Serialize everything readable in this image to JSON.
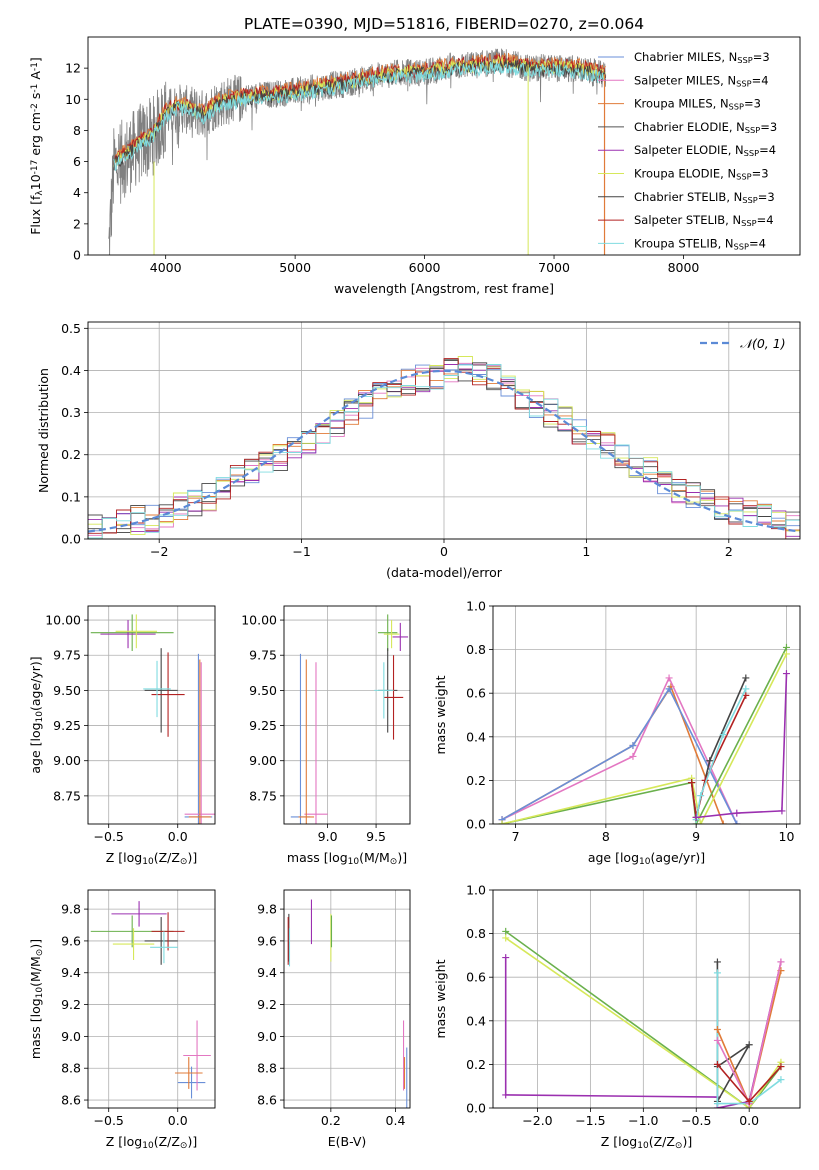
{
  "figure": {
    "title": "PLATE=0390, MJD=51816, FIBERID=0270, z=0.064"
  },
  "colors": {
    "chabrier_miles": "#6a8fd8",
    "salpeter_miles": "#e377c2",
    "kroupa_miles": "#e07b39",
    "chabrier_elodie": "#555555",
    "salpeter_elodie": "#9b30b0",
    "kroupa_elodie": "#d6e85a",
    "chabrier_stelib": "#444444",
    "salpeter_stelib": "#b22222",
    "kroupa_stelib": "#80dce0",
    "data": "#808080",
    "normal": "#5b8ad6",
    "green_line": "#6ab04c"
  },
  "chart_data": [
    {
      "id": "spectrum",
      "type": "line",
      "title": "PLATE=0390, MJD=51816, FIBERID=0270, z=0.064",
      "xlabel": "wavelength [Angstrom, rest frame]",
      "ylabel": "Flux [f$_\\lambda$10$^{-17}$ erg cm$^{-2}$ s$^{-1}$ A$^{-1}$]",
      "xlim": [
        3400,
        8900
      ],
      "ylim": [
        0,
        14
      ],
      "xticks": [
        4000,
        5000,
        6000,
        7000,
        8000
      ],
      "yticks": [
        0,
        2,
        4,
        6,
        8,
        10,
        12
      ],
      "grid": false,
      "legend_position": "right",
      "legend": [
        {
          "label": "Chabrier MILES, N",
          "sub": "SSP",
          "suffix": "=3",
          "color_key": "chabrier_miles"
        },
        {
          "label": "Salpeter MILES, N",
          "sub": "SSP",
          "suffix": "=4",
          "color_key": "salpeter_miles"
        },
        {
          "label": "Kroupa MILES, N",
          "sub": "SSP",
          "suffix": "=3",
          "color_key": "kroupa_miles"
        },
        {
          "label": "Chabrier ELODIE, N",
          "sub": "SSP",
          "suffix": "=3",
          "color_key": "chabrier_elodie"
        },
        {
          "label": "Salpeter ELODIE, N",
          "sub": "SSP",
          "suffix": "=4",
          "color_key": "salpeter_elodie"
        },
        {
          "label": "Kroupa ELODIE, N",
          "sub": "SSP",
          "suffix": "=3",
          "color_key": "kroupa_elodie"
        },
        {
          "label": "Chabrier STELIB, N",
          "sub": "SSP",
          "suffix": "=3",
          "color_key": "chabrier_stelib"
        },
        {
          "label": "Salpeter STELIB, N",
          "sub": "SSP",
          "suffix": "=4",
          "color_key": "salpeter_stelib"
        },
        {
          "label": "Kroupa STELIB, N",
          "sub": "SSP",
          "suffix": "=4",
          "color_key": "kroupa_stelib"
        }
      ],
      "data_envelope": {
        "x": [
          3560,
          3600,
          3700,
          3800,
          3900,
          4000,
          4100,
          4200,
          4300,
          4400,
          4500,
          4600,
          4800,
          5000,
          5200,
          5400,
          5600,
          5800,
          6000,
          6200,
          6400,
          6600,
          6800,
          7000,
          7200,
          7400
        ],
        "y": [
          0.5,
          6.0,
          6.6,
          7.4,
          7.9,
          9.2,
          9.6,
          9.4,
          9.2,
          9.9,
          10.1,
          10.2,
          10.4,
          10.6,
          10.9,
          11.1,
          11.5,
          11.8,
          11.8,
          12.2,
          12.3,
          12.5,
          12.1,
          12.1,
          12.0,
          11.6
        ]
      },
      "model_continuum": {
        "x": [
          3600,
          3700,
          3800,
          3900,
          4000,
          4100,
          4200,
          4300,
          4400,
          4600,
          4800,
          5000,
          5200,
          5400,
          5600,
          5800,
          6000,
          6200,
          6400,
          6600,
          6800,
          7000,
          7200,
          7400
        ],
        "y": [
          6.2,
          6.8,
          7.5,
          8.0,
          9.4,
          9.9,
          9.6,
          9.3,
          10.0,
          10.4,
          10.5,
          10.7,
          11.0,
          11.3,
          11.7,
          11.9,
          12.0,
          12.3,
          12.4,
          12.6,
          12.3,
          12.3,
          12.2,
          11.8
        ]
      }
    },
    {
      "id": "residuals",
      "type": "histogram",
      "xlabel": "(data-model)/error",
      "ylabel": "Normed distribution",
      "xlim": [
        -2.5,
        2.5
      ],
      "ylim": [
        0,
        0.515
      ],
      "xticks": [
        -2,
        -1,
        0,
        1,
        2
      ],
      "yticks": [
        0.0,
        0.1,
        0.2,
        0.3,
        0.4,
        0.5
      ],
      "grid": true,
      "legend": [
        {
          "label": "𝒩(0, 1)",
          "color_key": "normal",
          "style": "dashed"
        }
      ],
      "legend_position": "top-right",
      "bin_width": 0.1,
      "bins_start": -2.5,
      "series_base": [
        0.03,
        0.035,
        0.04,
        0.045,
        0.05,
        0.06,
        0.08,
        0.09,
        0.1,
        0.12,
        0.14,
        0.16,
        0.18,
        0.19,
        0.21,
        0.23,
        0.25,
        0.27,
        0.3,
        0.32,
        0.35,
        0.36,
        0.37,
        0.38,
        0.39,
        0.4,
        0.41,
        0.4,
        0.38,
        0.36,
        0.34,
        0.32,
        0.3,
        0.28,
        0.26,
        0.24,
        0.22,
        0.2,
        0.18,
        0.16,
        0.14,
        0.12,
        0.1,
        0.09,
        0.08,
        0.07,
        0.06,
        0.05,
        0.04,
        0.03
      ]
    },
    {
      "id": "age_vs_Z",
      "type": "errorbar",
      "xlabel": "Z [log$_{10}$(Z/Z$_\\odot$)]",
      "ylabel": "age  [log$_{10}$(age/yr)]",
      "xlim": [
        -0.65,
        0.27
      ],
      "ylim": [
        8.55,
        10.1
      ],
      "xticks": [
        -0.5,
        0.0
      ],
      "yticks": [
        8.75,
        9.0,
        9.25,
        9.5,
        9.75,
        10.0
      ],
      "grid": true,
      "points": [
        {
          "x": -0.33,
          "y": 9.91,
          "xerr": 0.3,
          "yerr": 0.13,
          "color_key": "green_line"
        },
        {
          "x": -0.36,
          "y": 9.9,
          "xerr": 0.2,
          "yerr": 0.1,
          "color_key": "salpeter_elodie"
        },
        {
          "x": -0.3,
          "y": 9.92,
          "xerr": 0.15,
          "yerr": 0.12,
          "color_key": "kroupa_elodie"
        },
        {
          "x": -0.12,
          "y": 9.5,
          "xerr": 0.12,
          "yerr": 0.3,
          "color_key": "chabrier_stelib"
        },
        {
          "x": -0.07,
          "y": 9.47,
          "xerr": 0.12,
          "yerr": 0.3,
          "color_key": "salpeter_stelib"
        },
        {
          "x": -0.15,
          "y": 9.51,
          "xerr": 0.1,
          "yerr": 0.2,
          "color_key": "kroupa_stelib"
        },
        {
          "x": 0.15,
          "y": 8.6,
          "xerr": 0.1,
          "yerr": 1.16,
          "color_key": "chabrier_miles"
        },
        {
          "x": 0.17,
          "y": 8.62,
          "xerr": 0.12,
          "yerr": 1.08,
          "color_key": "salpeter_miles"
        },
        {
          "x": 0.16,
          "y": 8.6,
          "xerr": 0.08,
          "yerr": 1.12,
          "color_key": "kroupa_miles"
        }
      ]
    },
    {
      "id": "age_vs_mass",
      "type": "errorbar",
      "xlabel": "mass [log$_{10}$(M/M$_\\odot$)]",
      "ylabel": "",
      "xlim": [
        8.55,
        9.85
      ],
      "ylim": [
        8.55,
        10.1
      ],
      "xticks": [
        9.0,
        9.5
      ],
      "yticks": [
        8.75,
        9.0,
        9.25,
        9.5,
        9.75,
        10.0
      ],
      "grid": true,
      "points": [
        {
          "x": 9.62,
          "y": 9.91,
          "xerr": 0.1,
          "yerr": 0.13,
          "color_key": "green_line"
        },
        {
          "x": 9.75,
          "y": 9.88,
          "xerr": 0.08,
          "yerr": 0.1,
          "color_key": "salpeter_elodie"
        },
        {
          "x": 9.66,
          "y": 9.9,
          "xerr": 0.08,
          "yerr": 0.1,
          "color_key": "kroupa_elodie"
        },
        {
          "x": 9.62,
          "y": 9.5,
          "xerr": 0.1,
          "yerr": 0.3,
          "color_key": "chabrier_stelib"
        },
        {
          "x": 9.68,
          "y": 9.45,
          "xerr": 0.1,
          "yerr": 0.3,
          "color_key": "salpeter_stelib"
        },
        {
          "x": 9.58,
          "y": 9.5,
          "xerr": 0.1,
          "yerr": 0.2,
          "color_key": "kroupa_stelib"
        },
        {
          "x": 8.72,
          "y": 8.6,
          "xerr": 0.1,
          "yerr": 1.16,
          "color_key": "chabrier_miles"
        },
        {
          "x": 8.88,
          "y": 8.62,
          "xerr": 0.12,
          "yerr": 1.08,
          "color_key": "salpeter_miles"
        },
        {
          "x": 8.78,
          "y": 8.6,
          "xerr": 0.08,
          "yerr": 1.12,
          "color_key": "kroupa_miles"
        }
      ]
    },
    {
      "id": "mass_weight_vs_age",
      "type": "line",
      "xlabel": "age  [log$_{10}$(age/yr)]",
      "ylabel": "mass weight",
      "xlim": [
        6.75,
        10.15
      ],
      "ylim": [
        0.0,
        1.0
      ],
      "xticks": [
        7,
        8,
        9,
        10
      ],
      "yticks": [
        0.0,
        0.2,
        0.4,
        0.6,
        0.8,
        1.0
      ],
      "grid": true,
      "series": [
        {
          "color_key": "kroupa_miles",
          "x": [
            6.85,
            8.3,
            8.72,
            9.3
          ],
          "y": [
            0.02,
            0.36,
            0.63,
            0.0
          ]
        },
        {
          "color_key": "salpeter_miles",
          "x": [
            6.85,
            8.3,
            8.7,
            9.45
          ],
          "y": [
            0.02,
            0.31,
            0.67,
            0.0
          ]
        },
        {
          "color_key": "chabrier_miles",
          "x": [
            6.85,
            8.3,
            8.7,
            9.45
          ],
          "y": [
            0.02,
            0.36,
            0.62,
            0.0
          ]
        },
        {
          "color_key": "green_line",
          "x": [
            6.85,
            8.95,
            9.0,
            10.0
          ],
          "y": [
            0.0,
            0.19,
            0.0,
            0.81
          ]
        },
        {
          "color_key": "kroupa_elodie",
          "x": [
            6.85,
            8.95,
            9.05,
            10.0
          ],
          "y": [
            0.0,
            0.21,
            0.0,
            0.78
          ]
        },
        {
          "color_key": "chabrier_stelib",
          "x": [
            8.95,
            9.0,
            9.15,
            9.55
          ],
          "y": [
            0.19,
            0.03,
            0.29,
            0.67
          ]
        },
        {
          "color_key": "salpeter_stelib",
          "x": [
            8.95,
            9.0,
            9.1,
            9.55
          ],
          "y": [
            0.19,
            0.03,
            0.2,
            0.59
          ]
        },
        {
          "color_key": "kroupa_stelib",
          "x": [
            9.0,
            9.05,
            9.3,
            9.55
          ],
          "y": [
            0.02,
            0.13,
            0.41,
            0.62
          ]
        },
        {
          "color_key": "salpeter_elodie",
          "x": [
            9.0,
            9.45,
            9.95,
            10.0
          ],
          "y": [
            0.03,
            0.05,
            0.06,
            0.69
          ]
        }
      ]
    },
    {
      "id": "mass_vs_Z",
      "type": "errorbar",
      "xlabel": "Z [log$_{10}$(Z/Z$_\\odot$)]",
      "ylabel": "mass [log$_{10}$(M/M$_\\odot$)]",
      "xlim": [
        -0.65,
        0.27
      ],
      "ylim": [
        8.55,
        9.92
      ],
      "xticks": [
        -0.5,
        0.0
      ],
      "yticks": [
        8.6,
        8.8,
        9.0,
        9.2,
        9.4,
        9.6,
        9.8
      ],
      "grid": true,
      "points": [
        {
          "x": -0.33,
          "y": 9.66,
          "xerr": 0.3,
          "yerr": 0.1,
          "color_key": "green_line"
        },
        {
          "x": -0.28,
          "y": 9.77,
          "xerr": 0.2,
          "yerr": 0.08,
          "color_key": "salpeter_elodie"
        },
        {
          "x": -0.32,
          "y": 9.58,
          "xerr": 0.15,
          "yerr": 0.1,
          "color_key": "kroupa_elodie"
        },
        {
          "x": -0.12,
          "y": 9.6,
          "xerr": 0.12,
          "yerr": 0.15,
          "color_key": "chabrier_stelib"
        },
        {
          "x": -0.07,
          "y": 9.66,
          "xerr": 0.12,
          "yerr": 0.12,
          "color_key": "salpeter_stelib"
        },
        {
          "x": -0.1,
          "y": 9.56,
          "xerr": 0.1,
          "yerr": 0.1,
          "color_key": "kroupa_stelib"
        },
        {
          "x": 0.1,
          "y": 8.71,
          "xerr": 0.1,
          "yerr": 0.1,
          "color_key": "chabrier_miles"
        },
        {
          "x": 0.14,
          "y": 8.88,
          "xerr": 0.1,
          "yerr": 0.22,
          "color_key": "salpeter_miles"
        },
        {
          "x": 0.08,
          "y": 8.77,
          "xerr": 0.1,
          "yerr": 0.1,
          "color_key": "kroupa_miles"
        }
      ]
    },
    {
      "id": "mass_vs_EBV",
      "type": "errorbar",
      "xlabel": "E(B-V)",
      "ylabel": "",
      "xlim": [
        0.055,
        0.445
      ],
      "ylim": [
        8.55,
        9.92
      ],
      "xticks": [
        0.2,
        0.4
      ],
      "yticks": [
        8.6,
        8.8,
        9.0,
        9.2,
        9.4,
        9.6,
        9.8
      ],
      "grid": true,
      "points": [
        {
          "x": 0.07,
          "y": 9.62,
          "xerr": 0,
          "yerr": 0.15,
          "color_key": "chabrier_stelib"
        },
        {
          "x": 0.068,
          "y": 9.6,
          "xerr": 0,
          "yerr": 0.15,
          "color_key": "salpeter_stelib"
        },
        {
          "x": 0.072,
          "y": 9.56,
          "xerr": 0,
          "yerr": 0.12,
          "color_key": "kroupa_stelib"
        },
        {
          "x": 0.14,
          "y": 9.72,
          "xerr": 0,
          "yerr": 0.14,
          "color_key": "salpeter_elodie"
        },
        {
          "x": 0.2,
          "y": 9.62,
          "xerr": 0,
          "yerr": 0.15,
          "color_key": "kroupa_elodie"
        },
        {
          "x": 0.202,
          "y": 9.66,
          "xerr": 0,
          "yerr": 0.1,
          "color_key": "green_line"
        },
        {
          "x": 0.425,
          "y": 8.88,
          "xerr": 0,
          "yerr": 0.22,
          "color_key": "salpeter_miles"
        },
        {
          "x": 0.428,
          "y": 8.77,
          "xerr": 0,
          "yerr": 0.1,
          "color_key": "kroupa_miles"
        },
        {
          "x": 0.435,
          "y": 8.71,
          "xerr": 0,
          "yerr": 0.22,
          "color_key": "chabrier_miles"
        }
      ]
    },
    {
      "id": "mass_weight_vs_Z",
      "type": "line",
      "xlabel": "Z [log$_{10}$(Z/Z$_\\odot$)]",
      "ylabel": "mass weight",
      "xlim": [
        -2.42,
        0.48
      ],
      "ylim": [
        0.0,
        1.0
      ],
      "xticks": [
        -2.0,
        -1.5,
        -1.0,
        -0.5,
        0.0
      ],
      "yticks": [
        0.0,
        0.2,
        0.4,
        0.6,
        0.8,
        1.0
      ],
      "grid": true,
      "series": [
        {
          "color_key": "green_line",
          "x": [
            -2.3,
            0.0,
            0.3
          ],
          "y": [
            0.81,
            0.0,
            0.19
          ]
        },
        {
          "color_key": "kroupa_elodie",
          "x": [
            -2.3,
            0.0,
            0.3
          ],
          "y": [
            0.78,
            0.0,
            0.21
          ]
        },
        {
          "color_key": "salpeter_elodie",
          "x": [
            -2.3,
            -2.3,
            -0.3,
            -0.3,
            0.0,
            0.3
          ],
          "y": [
            0.69,
            0.06,
            0.05,
            0.0,
            0.03,
            0.67
          ]
        },
        {
          "color_key": "chabrier_stelib",
          "x": [
            -0.3,
            -0.3,
            0.0,
            -0.3
          ],
          "y": [
            0.67,
            0.03,
            0.29,
            0.19
          ]
        },
        {
          "color_key": "kroupa_stelib",
          "x": [
            -0.3,
            -0.3,
            0.0,
            0.3
          ],
          "y": [
            0.62,
            0.02,
            0.02,
            0.13
          ]
        },
        {
          "color_key": "kroupa_miles",
          "x": [
            -0.3,
            0.0,
            0.3
          ],
          "y": [
            0.36,
            0.02,
            0.63
          ]
        },
        {
          "color_key": "salpeter_miles",
          "x": [
            -0.3,
            0.0,
            0.3
          ],
          "y": [
            0.31,
            0.02,
            0.67
          ]
        },
        {
          "color_key": "salpeter_stelib",
          "x": [
            -0.3,
            0.0,
            0.3
          ],
          "y": [
            0.2,
            0.03,
            0.19
          ]
        }
      ]
    }
  ]
}
